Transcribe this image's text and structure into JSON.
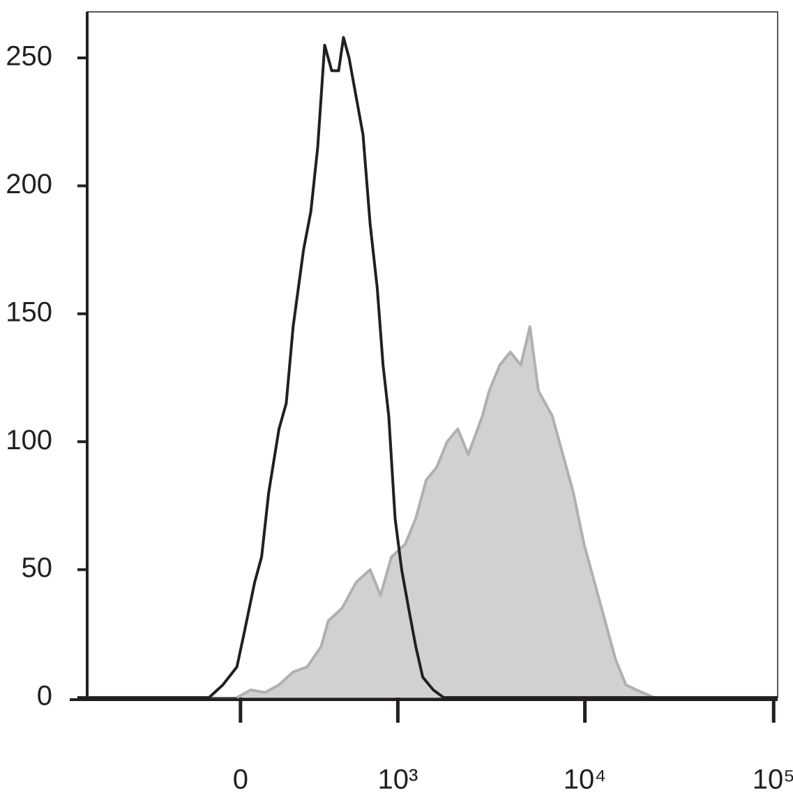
{
  "chart_data": {
    "type": "histogram-overlay",
    "xscale": "biexponential",
    "xlim": [
      -950,
      105000
    ],
    "xticks": [
      {
        "value": 0,
        "label": "0"
      },
      {
        "value": 1000,
        "label": "10³"
      },
      {
        "value": 10000,
        "label": "10⁴"
      },
      {
        "value": 100000,
        "label": "10⁵"
      }
    ],
    "ylim": [
      0,
      268
    ],
    "yticks": [
      0,
      50,
      100,
      150,
      200,
      250
    ],
    "series": [
      {
        "color": "#b0b0b0",
        "fill": "#d1d1d1",
        "x": [
          -13,
          38,
          91,
          146,
          206,
          272,
          345,
          386,
          475,
          577,
          698,
          800,
          922,
          1098,
          1254,
          1429,
          1628,
          1854,
          2112,
          2403,
          2856,
          3111,
          3538,
          4025,
          4578,
          5115,
          5670,
          6720,
          7640,
          8700,
          9890,
          11250,
          12790,
          14530,
          16500,
          18760,
          23240
        ],
        "values": [
          0,
          3,
          2,
          5,
          10,
          12,
          20,
          30,
          35,
          45,
          50,
          40,
          55,
          60,
          70,
          85,
          90,
          100,
          105,
          95,
          110,
          120,
          130,
          135,
          130,
          145,
          120,
          110,
          95,
          80,
          60,
          45,
          30,
          15,
          5,
          3,
          0
        ]
      },
      {
        "color": "#231f20",
        "x": [
          -950,
          -118,
          -65,
          -13,
          13,
          52,
          78,
          105,
          146,
          176,
          206,
          254,
          290,
          326,
          365,
          407,
          451,
          484,
          524,
          577,
          635,
          698,
          767,
          827,
          890,
          966,
          1050,
          1146,
          1254,
          1368,
          1560,
          1776,
          105000
        ],
        "values": [
          0,
          0,
          5,
          12,
          25,
          45,
          55,
          80,
          105,
          115,
          145,
          175,
          190,
          215,
          255,
          245,
          245,
          258,
          250,
          235,
          220,
          185,
          160,
          130,
          110,
          70,
          50,
          35,
          20,
          8,
          3,
          0,
          0
        ]
      }
    ]
  }
}
